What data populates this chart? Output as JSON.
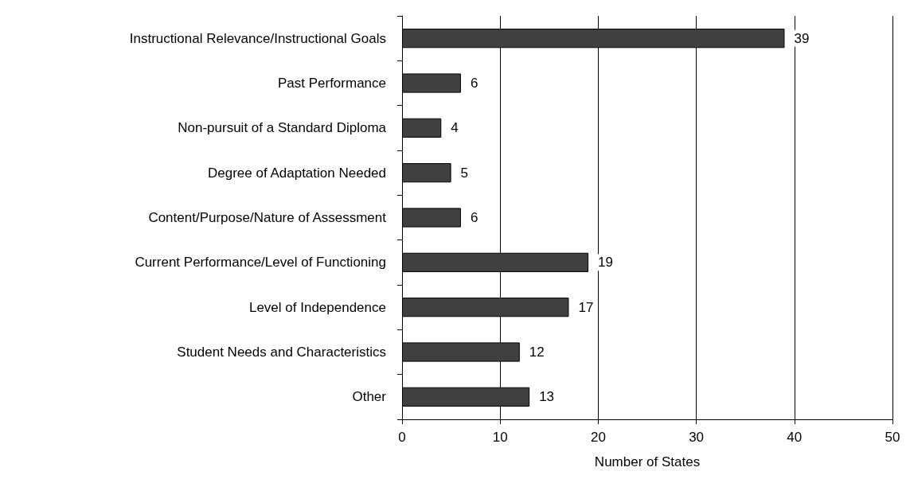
{
  "chart_data": {
    "type": "bar",
    "orientation": "horizontal",
    "xlabel": "Number of States",
    "categories": [
      "Instructional Relevance/Instructional Goals",
      "Past Performance",
      "Non-pursuit of a Standard Diploma",
      "Degree of Adaptation Needed",
      "Content/Purpose/Nature of Assessment",
      "Current Performance/Level of Functioning",
      "Level of Independence",
      "Student Needs and Characteristics",
      "Other"
    ],
    "values": [
      39,
      6,
      4,
      5,
      6,
      19,
      17,
      12,
      13
    ],
    "color": "#404040",
    "xlim": [
      0,
      50
    ],
    "xticks": [
      0,
      10,
      20,
      30,
      40,
      50
    ],
    "grid": "x",
    "data_labels": true
  }
}
